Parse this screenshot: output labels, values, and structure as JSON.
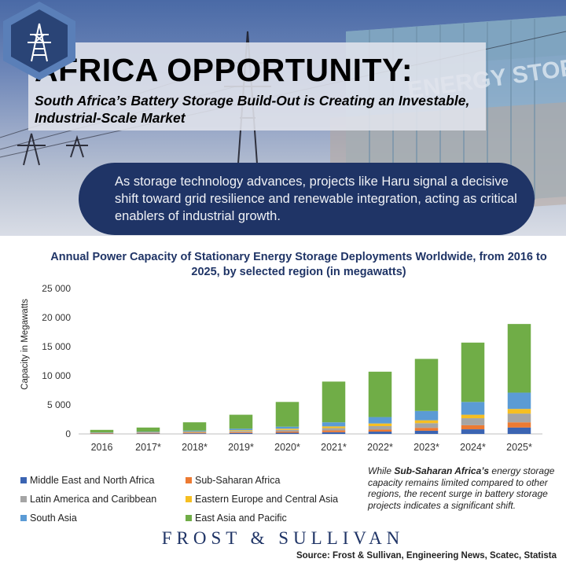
{
  "header": {
    "title": "AFRICA OPPORTUNITY:",
    "subtitle": "South Africa’s Battery Storage Build-Out is Creating an Investable, Industrial-Scale Market",
    "container_sign": "ENERGY STORAGE",
    "banner_text": "As storage technology advances, projects like Haru signal a decisive shift toward grid resilience and renewable integration, acting as critical enablers of industrial growth.",
    "banner_icon": "power-tower-icon"
  },
  "chart_data": {
    "type": "bar",
    "stacked": true,
    "title": "Annual Power Capacity of Stationary Energy Storage Deployments Worldwide, from 2016 to 2025, by selected region (in megawatts)",
    "xlabel": "",
    "ylabel": "Capacity in Megawatts",
    "ylim": [
      0,
      25000
    ],
    "yticks": [
      "0",
      "5 000",
      "10 000",
      "15 000",
      "20 000",
      "25 000"
    ],
    "categories": [
      "2016",
      "2017*",
      "2018*",
      "2019*",
      "2020*",
      "2021*",
      "2022*",
      "2023*",
      "2024*",
      "2025*"
    ],
    "series": [
      {
        "name": "Middle East and North Africa",
        "color": "#3b64b2",
        "values": [
          50,
          80,
          100,
          150,
          200,
          300,
          400,
          550,
          800,
          1100
        ]
      },
      {
        "name": "Sub-Saharan Africa",
        "color": "#ec7a32",
        "values": [
          80,
          100,
          120,
          150,
          200,
          300,
          350,
          500,
          700,
          900
        ]
      },
      {
        "name": "Latin America and Caribbean",
        "color": "#a5a5a5",
        "values": [
          60,
          80,
          120,
          200,
          300,
          400,
          600,
          800,
          1200,
          1500
        ]
      },
      {
        "name": "Eastern Europe and Central Asia",
        "color": "#f6bf22",
        "values": [
          30,
          50,
          80,
          150,
          200,
          300,
          450,
          500,
          600,
          800
        ]
      },
      {
        "name": "South Asia",
        "color": "#5b9bd5",
        "values": [
          50,
          90,
          150,
          250,
          350,
          700,
          1100,
          1600,
          2200,
          2800
        ]
      },
      {
        "name": "East Asia and Pacific",
        "color": "#70ad47",
        "values": [
          430,
          700,
          1430,
          2400,
          4250,
          7000,
          7800,
          8950,
          10200,
          11800
        ]
      }
    ],
    "legend_position": "bottom-left",
    "grid": false
  },
  "note": {
    "before": "While ",
    "bold": "Sub-Saharan Africa’s",
    "after": " energy storage capacity remains limited compared to other regions, the recent surge in battery storage projects indicates a significant shift."
  },
  "footer": {
    "brand": "FROST & SULLIVAN",
    "source": "Source: Frost & Sullivan, Engineering News, Scatec, Statista"
  }
}
